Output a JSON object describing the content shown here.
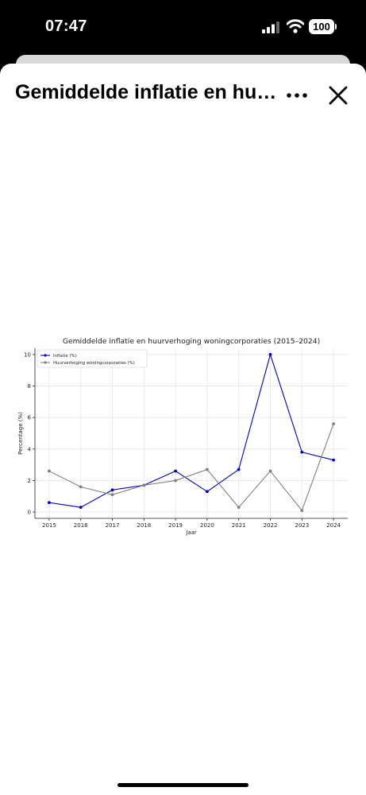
{
  "status_bar": {
    "time": "07:47",
    "battery": "100",
    "icons": [
      "signal-icon",
      "wifi-icon",
      "battery-icon"
    ]
  },
  "sheet": {
    "title": "Gemiddelde inflatie en huurverhoging woningcorporaties (2015–2024)",
    "icons": [
      "more-icon",
      "close-icon"
    ]
  },
  "chart_data": {
    "type": "line",
    "title": "Gemiddelde inflatie en huurverhoging woningcorporaties (2015–2024)",
    "xlabel": "Jaar",
    "ylabel": "Percentage (%)",
    "x": [
      2015,
      2016,
      2017,
      2018,
      2019,
      2020,
      2021,
      2022,
      2023,
      2024
    ],
    "ylim": [
      -0.4,
      10.4
    ],
    "yticks": [
      0,
      2,
      4,
      6,
      8,
      10
    ],
    "grid": true,
    "legend": "top-left",
    "series": [
      {
        "name": "Inflatie (%)",
        "color": "#0000cc",
        "values": [
          0.6,
          0.3,
          1.4,
          1.7,
          2.6,
          1.3,
          2.7,
          10.0,
          3.8,
          3.3
        ]
      },
      {
        "name": "Huurverhoging woningcorporaties (%)",
        "color": "#808080",
        "values": [
          2.6,
          1.6,
          1.1,
          1.7,
          2.0,
          2.7,
          0.3,
          2.6,
          0.1,
          5.6
        ]
      }
    ]
  }
}
